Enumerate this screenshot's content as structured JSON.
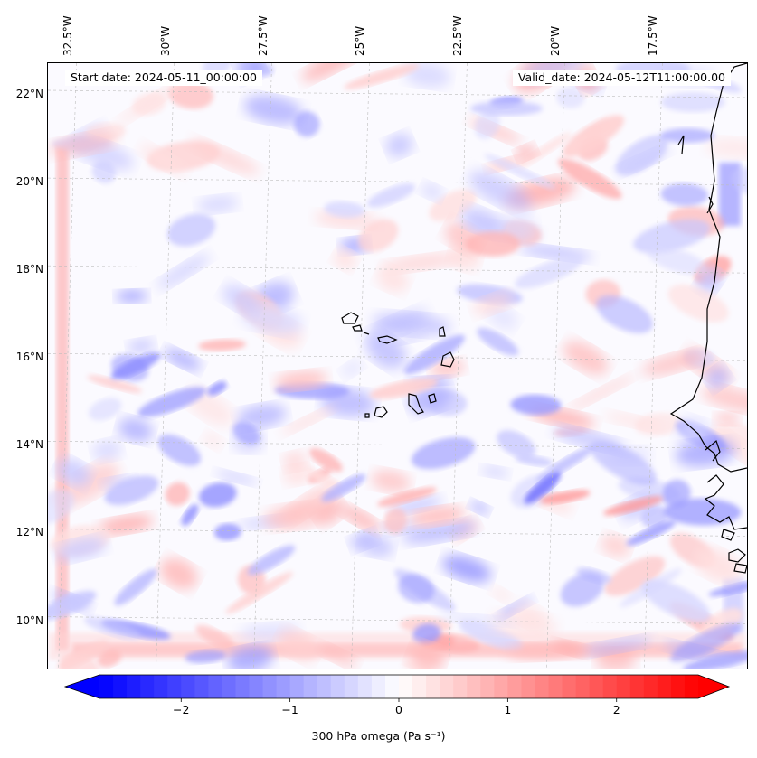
{
  "header": {
    "start_date": "Start date: 2024-05-11_00:00:00",
    "valid_date": "Valid_date: 2024-05-12T11:00:00.00"
  },
  "map": {
    "lon_range": [
      -33.0,
      -15.1
    ],
    "lat_range": [
      8.9,
      22.7
    ],
    "lat_labels": [
      {
        "value": 22,
        "text": "22°N"
      },
      {
        "value": 20,
        "text": "20°N"
      },
      {
        "value": 18,
        "text": "18°N"
      },
      {
        "value": 16,
        "text": "16°N"
      },
      {
        "value": 14,
        "text": "14°N"
      },
      {
        "value": 12,
        "text": "12°N"
      },
      {
        "value": 10,
        "text": "10°N"
      }
    ],
    "lon_labels": [
      {
        "value": -32.5,
        "text": "32.5°W"
      },
      {
        "value": -30,
        "text": "30°W"
      },
      {
        "value": -27.5,
        "text": "27.5°W"
      },
      {
        "value": -25,
        "text": "25°W"
      },
      {
        "value": -22.5,
        "text": "22.5°W"
      },
      {
        "value": -20,
        "text": "20°W"
      },
      {
        "value": -17.5,
        "text": "17.5°W"
      }
    ],
    "gridlines": true,
    "field": "300 hPa vertical velocity (omega)",
    "colormap": {
      "negative": "#0000ff",
      "zero": "#ffffff",
      "positive": "#ff0000"
    }
  },
  "colorbar": {
    "label": "300 hPa omega (Pa s⁻¹)",
    "range": [
      -2.75,
      2.75
    ],
    "ticks": [
      {
        "value": -2,
        "text": "−2"
      },
      {
        "value": -1,
        "text": "−1"
      },
      {
        "value": 0,
        "text": "0"
      },
      {
        "value": 1,
        "text": "1"
      },
      {
        "value": 2,
        "text": "2"
      }
    ],
    "extend": "both"
  }
}
